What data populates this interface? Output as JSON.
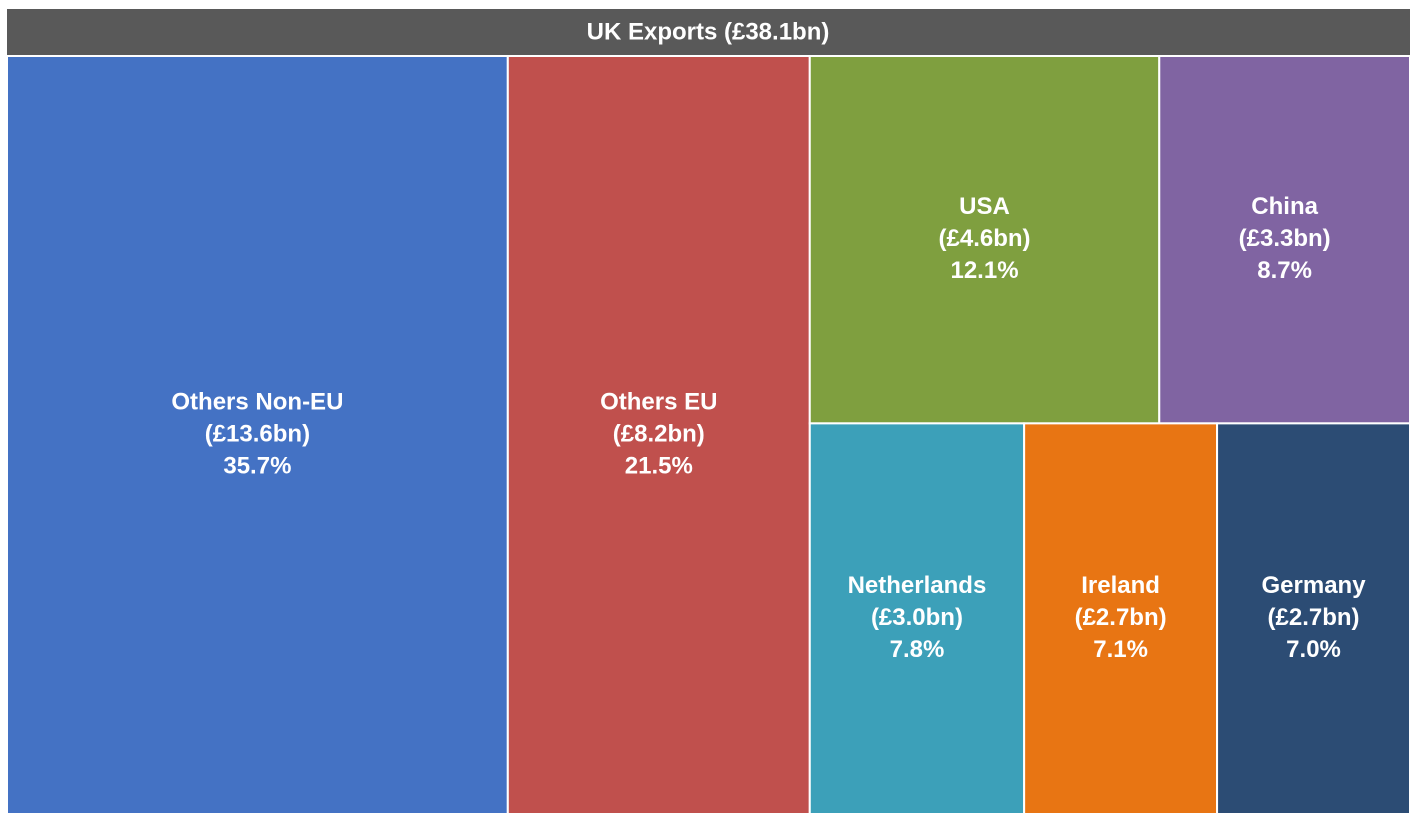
{
  "chart_data": {
    "type": "treemap",
    "title": "UK Exports (£38.1bn)",
    "categories": [
      "Others Non-EU",
      "Others EU",
      "USA",
      "China",
      "Netherlands",
      "Ireland",
      "Germany"
    ],
    "values": [
      13.6,
      8.2,
      4.6,
      3.3,
      3.0,
      2.7,
      2.7
    ],
    "value_labels": [
      "(£13.6bn)",
      "(£8.2bn)",
      "(£4.6bn)",
      "(£3.3bn)",
      "(£3.0bn)",
      "(£2.7bn)",
      "(£2.7bn)"
    ],
    "shares": [
      35.7,
      21.5,
      12.1,
      8.7,
      7.8,
      7.1,
      7.0
    ],
    "share_labels": [
      "35.7%",
      "21.5%",
      "12.1%",
      "8.7%",
      "7.8%",
      "7.1%",
      "7.0%"
    ],
    "colors": [
      "#4472c4",
      "#c0504d",
      "#7f9f3f",
      "#8064a2",
      "#3ca0b9",
      "#e87513",
      "#2c4c74"
    ]
  }
}
